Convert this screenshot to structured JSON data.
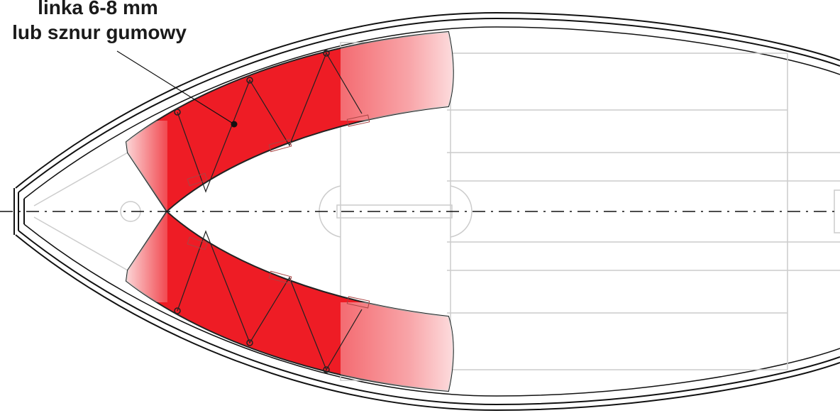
{
  "label": {
    "lines": [
      "linka 6-8 mm",
      "lub sznur gumowy"
    ]
  }
}
